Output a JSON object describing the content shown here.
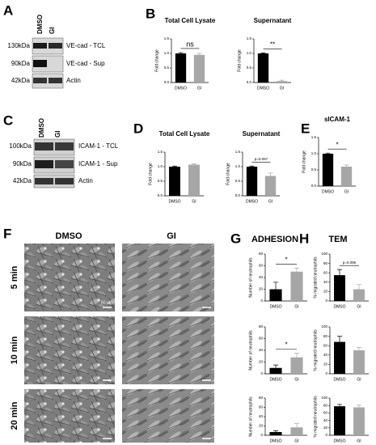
{
  "figure": {
    "panels": [
      "A",
      "B",
      "C",
      "D",
      "E",
      "F",
      "G",
      "H"
    ],
    "blot_a": {
      "lanes": [
        "DMSO",
        "GI"
      ],
      "rows": [
        {
          "size": "130kDa",
          "label": "VE-cad - TCL"
        },
        {
          "size": "90kDa",
          "label": "VE-cad - Sup"
        },
        {
          "size": "42kDa",
          "label": "Actin"
        }
      ]
    },
    "blot_c": {
      "lanes": [
        "DMSO",
        "GI"
      ],
      "rows": [
        {
          "size": "100kDa",
          "label": "ICAM-1 - TCL"
        },
        {
          "size": "90kDa",
          "label": "ICAM-1 - Sup"
        },
        {
          "size": "42kDa",
          "label": "Actin"
        }
      ]
    },
    "micrographs": {
      "columns": [
        "DMSO",
        "GI"
      ],
      "rows": [
        "5 min",
        "10 min",
        "20 min"
      ],
      "scale_bar": "50 µm"
    },
    "g_header": "ADHESION",
    "h_header": "TEM"
  },
  "chart_data": [
    {
      "type": "bar",
      "title": "Total Cell Lysate",
      "ylabel": "Fold change",
      "categories": [
        "DMSO",
        "GI"
      ],
      "values": [
        1.0,
        0.95
      ],
      "errors": [
        0.03,
        0.05
      ],
      "colors": [
        "#000000",
        "#a6a6a6"
      ],
      "ylim": [
        0,
        1.5
      ],
      "yticks": [
        {
          "value": 0,
          "label": "0.0"
        },
        0.5,
        {
          "value": 1,
          "label": "1.0"
        },
        1.5
      ],
      "annotation": "ns"
    },
    {
      "type": "bar",
      "title": "Supernatant",
      "ylabel": "Fold change",
      "categories": [
        "DMSO",
        "GI"
      ],
      "values": [
        1.0,
        0.05
      ],
      "errors": [
        0.02,
        0.03
      ],
      "colors": [
        "#000000",
        "#a6a6a6"
      ],
      "ylim": [
        0,
        1.5
      ],
      "yticks": [
        {
          "value": 0,
          "label": "0.0"
        },
        0.5,
        {
          "value": 1,
          "label": "1.0"
        },
        1.5
      ],
      "annotation": "**"
    },
    {
      "type": "bar",
      "title": "Total Cell Lysate",
      "ylabel": "Fold change",
      "categories": [
        "DMSO",
        "GI"
      ],
      "values": [
        1.0,
        1.07
      ],
      "errors": [
        0.02,
        0.03
      ],
      "colors": [
        "#000000",
        "#a6a6a6"
      ],
      "ylim": [
        0,
        1.5
      ],
      "yticks": [
        {
          "value": 0,
          "label": "0.0"
        },
        0.5,
        {
          "value": 1,
          "label": "1.0"
        },
        1.5
      ]
    },
    {
      "type": "bar",
      "title": "Supernatant",
      "ylabel": "Fold change",
      "categories": [
        "DMSO",
        "GI"
      ],
      "values": [
        1.0,
        0.68
      ],
      "errors": [
        0.02,
        0.1
      ],
      "colors": [
        "#000000",
        "#a6a6a6"
      ],
      "ylim": [
        0,
        1.5
      ],
      "yticks": [
        {
          "value": 0,
          "label": "0.0"
        },
        0.5,
        {
          "value": 1,
          "label": "1.0"
        },
        1.5
      ],
      "annotation": "p=0.097"
    },
    {
      "type": "bar",
      "title": "sICAM-1",
      "ylabel": "Fold change",
      "categories": [
        "DMSO",
        "GI"
      ],
      "values": [
        1.0,
        0.6
      ],
      "errors": [
        0.02,
        0.05
      ],
      "colors": [
        "#000000",
        "#a6a6a6"
      ],
      "ylim": [
        0,
        1.5
      ],
      "yticks": [
        {
          "value": 0,
          "label": "0.0"
        },
        0.5,
        {
          "value": 1,
          "label": "1.0"
        },
        1.5
      ],
      "annotation": "*"
    },
    {
      "type": "bar",
      "ylabel": "Number of neutrophils",
      "categories": [
        "DMSO",
        "GI"
      ],
      "values": [
        20,
        50
      ],
      "errors": [
        12,
        6
      ],
      "colors": [
        "#000000",
        "#a6a6a6"
      ],
      "ylim": [
        0,
        80
      ],
      "yticks": [
        0,
        20,
        40,
        60,
        80
      ],
      "annotation": "*"
    },
    {
      "type": "bar",
      "ylabel": "Number of neutrophils",
      "categories": [
        "DMSO",
        "GI"
      ],
      "values": [
        10,
        28
      ],
      "errors": [
        5,
        7
      ],
      "colors": [
        "#000000",
        "#a6a6a6"
      ],
      "ylim": [
        0,
        80
      ],
      "yticks": [
        0,
        20,
        40,
        60,
        80
      ],
      "annotation": "*"
    },
    {
      "type": "bar",
      "ylabel": "Number of neutrophils",
      "categories": [
        "DMSO",
        "GI"
      ],
      "values": [
        7,
        17
      ],
      "errors": [
        3,
        8
      ],
      "colors": [
        "#000000",
        "#a6a6a6"
      ],
      "ylim": [
        0,
        80
      ],
      "yticks": [
        0,
        20,
        40,
        60,
        80
      ]
    },
    {
      "type": "bar",
      "ylabel": "% migrated neutrophils",
      "categories": [
        "DMSO",
        "GI"
      ],
      "values": [
        55,
        25
      ],
      "errors": [
        12,
        10
      ],
      "colors": [
        "#000000",
        "#a6a6a6"
      ],
      "ylim": [
        0,
        100
      ],
      "yticks": [
        0,
        20,
        40,
        60,
        80,
        100
      ],
      "annotation": "p=0.096"
    },
    {
      "type": "bar",
      "ylabel": "% migrated neutrophils",
      "categories": [
        "DMSO",
        "GI"
      ],
      "values": [
        68,
        50
      ],
      "errors": [
        12,
        6
      ],
      "colors": [
        "#000000",
        "#a6a6a6"
      ],
      "ylim": [
        0,
        100
      ],
      "yticks": [
        0,
        20,
        40,
        60,
        80,
        100
      ]
    },
    {
      "type": "bar",
      "ylabel": "% migrated neutrophils",
      "categories": [
        "DMSO",
        "GI"
      ],
      "values": [
        78,
        75
      ],
      "errors": [
        5,
        6
      ],
      "colors": [
        "#000000",
        "#a6a6a6"
      ],
      "ylim": [
        0,
        100
      ],
      "yticks": [
        0,
        20,
        40,
        60,
        80,
        100
      ]
    }
  ]
}
